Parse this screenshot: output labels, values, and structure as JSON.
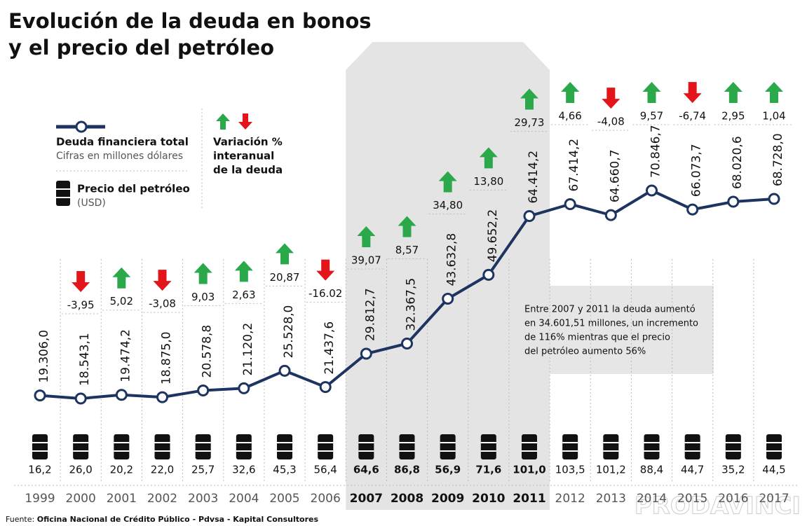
{
  "chart_data": {
    "type": "line",
    "title": [
      "Evolución de la deuda en bonos",
      "y el precio del petróleo"
    ],
    "categories": [
      "1999",
      "2000",
      "2001",
      "2002",
      "2003",
      "2004",
      "2005",
      "2006",
      "2007",
      "2008",
      "2009",
      "2010",
      "2011",
      "2012",
      "2013",
      "2014",
      "2015",
      "2016",
      "2017"
    ],
    "series": [
      {
        "name": "Deuda financiera total",
        "subtitle": "Cifras en millones dólares",
        "color": "#1d3461",
        "values": [
          19306.0,
          18543.1,
          19474.2,
          18875.0,
          20578.8,
          21120.2,
          25528.0,
          21437.6,
          29812.7,
          32367.5,
          43632.8,
          49652.2,
          64414.2,
          67414.2,
          64660.7,
          70846.7,
          66073.7,
          68020.6,
          68728.0
        ],
        "value_labels": [
          "19.306,0",
          "18.543,1",
          "19.474,2",
          "18.875,0",
          "20.578,8",
          "21.120,2",
          "25.528,0",
          "21.437,6",
          "29.812,7",
          "32.367,5",
          "43.632,8",
          "49.652,2",
          "64.414,2",
          "67.414,2",
          "64.660,7",
          "70.846,7",
          "66.073,7",
          "68.020,6",
          "68.728,0"
        ]
      }
    ],
    "variation": {
      "name": [
        "Variación %",
        "interanual",
        "de la deuda"
      ],
      "up_color": "#2aa84a",
      "down_color": "#e3151a",
      "values": [
        null,
        -3.95,
        5.02,
        -3.08,
        9.03,
        2.63,
        20.87,
        -16.02,
        39.07,
        8.57,
        34.8,
        13.8,
        29.73,
        4.66,
        -4.08,
        9.57,
        -6.74,
        2.95,
        1.04
      ],
      "value_labels": [
        null,
        "-3,95",
        "5,02",
        "-3,08",
        "9,03",
        "2,63",
        "20,87",
        "-16.02",
        "39,07",
        "8,57",
        "34,80",
        "13,80",
        "29,73",
        "4,66",
        "-4,08",
        "9,57",
        "-6,74",
        "2,95",
        "1,04"
      ]
    },
    "oil": {
      "name": "Precio del petróleo",
      "unit": "(USD)",
      "values": [
        16.2,
        26.0,
        20.2,
        22.0,
        25.7,
        32.6,
        45.3,
        56.4,
        64.6,
        86.8,
        56.9,
        71.6,
        101.0,
        103.5,
        101.2,
        88.4,
        44.7,
        35.2,
        44.5
      ],
      "value_labels": [
        "16,2",
        "26,0",
        "20,2",
        "22,0",
        "25,7",
        "32,6",
        "45,3",
        "56,4",
        "64,6",
        "86,8",
        "56,9",
        "71,6",
        "101,0",
        "103,5",
        "101,2",
        "88,4",
        "44,7",
        "35,2",
        "44,5"
      ]
    },
    "highlight": [
      "2007",
      "2011"
    ],
    "annotation": [
      "Entre 2007 y 2011 la deuda aumentó",
      "en 34.601,51 millones, un incremento",
      "de 116% mientras que el precio",
      "del petróleo aumento 56%"
    ],
    "source": {
      "label": "Fuente:",
      "text": "Oficina Nacional de Crédito Público - Pdvsa - Kapital Consultores"
    },
    "watermark": "PRODAVINCI"
  }
}
